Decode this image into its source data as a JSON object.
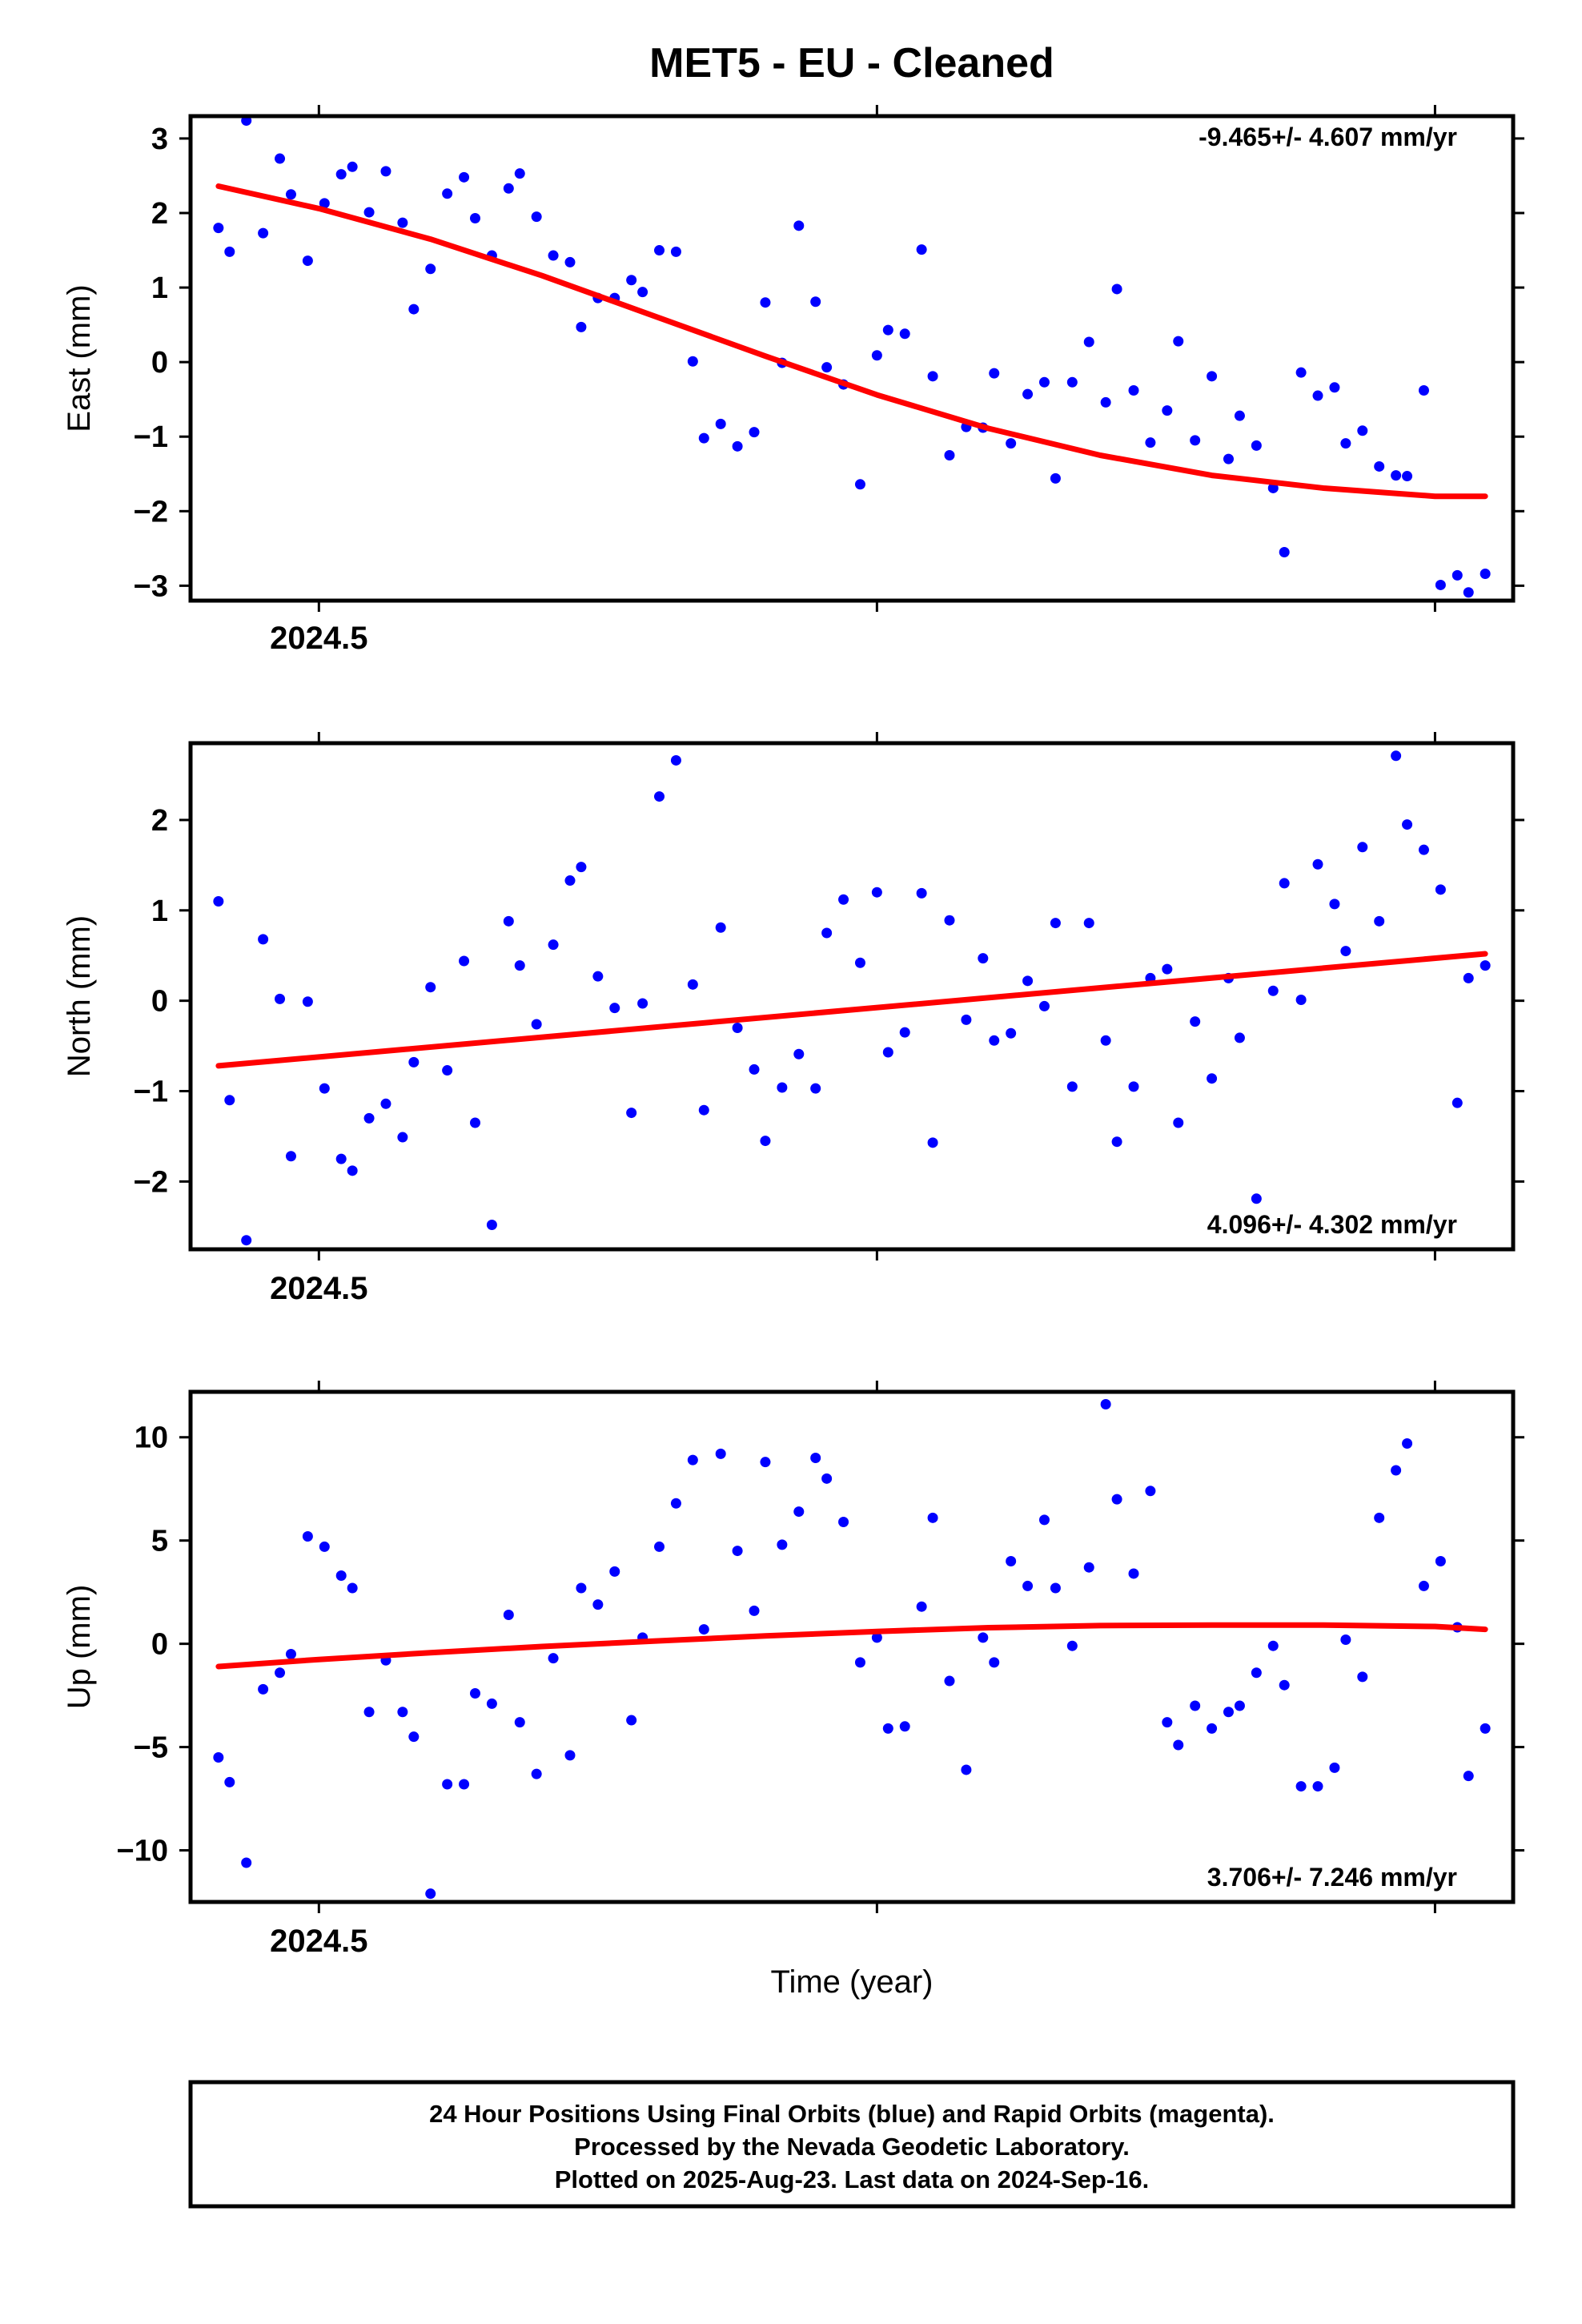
{
  "title": "MET5  - EU - Cleaned",
  "xlabel": "Time (year)",
  "footer": {
    "line1": "24 Hour Positions Using Final Orbits (blue) and Rapid Orbits (magenta).",
    "line2": "Processed by the Nevada Geodetic Laboratory.",
    "line3": "Plotted on 2025-Aug-23. Last data on 2024-Sep-16."
  },
  "colors": {
    "points": "#0000ff",
    "trend": "#ff0000",
    "frame": "#000000"
  },
  "chart_data": [
    {
      "type": "scatter",
      "ylabel": "East (mm)",
      "rate_text": "-9.465+/- 4.607 mm/yr",
      "rate_position": "top-right",
      "xlim": [
        2024.477,
        2024.714
      ],
      "ylim": [
        -3.2,
        3.3
      ],
      "yticks": [
        -3,
        -2,
        -1,
        0,
        1,
        2,
        3
      ],
      "xtick_labels": [
        "2024.5"
      ],
      "xticks_minor": [
        2024.5,
        2024.6,
        2024.7
      ],
      "series": [
        {
          "x": [
            2024.482,
            2024.484,
            2024.487,
            2024.49,
            2024.493,
            2024.495,
            2024.498,
            2024.501,
            2024.504,
            2024.506,
            2024.509,
            2024.512,
            2024.515,
            2024.517,
            2024.52,
            2024.523,
            2024.526,
            2024.528,
            2024.531,
            2024.534,
            2024.536,
            2024.539,
            2024.542,
            2024.545,
            2024.547,
            2024.55,
            2024.553,
            2024.556,
            2024.558,
            2024.561,
            2024.564,
            2024.567,
            2024.569,
            2024.572,
            2024.575,
            2024.578,
            2024.58,
            2024.583,
            2024.586,
            2024.589,
            2024.591,
            2024.594,
            2024.597,
            2024.6,
            2024.602,
            2024.605,
            2024.608,
            2024.61,
            2024.613,
            2024.616,
            2024.619,
            2024.621,
            2024.624,
            2024.627,
            2024.63,
            2024.632,
            2024.635,
            2024.638,
            2024.641,
            2024.643,
            2024.646,
            2024.649,
            2024.652,
            2024.654,
            2024.657,
            2024.66,
            2024.663,
            2024.665,
            2024.668,
            2024.671,
            2024.673,
            2024.676,
            2024.679,
            2024.682,
            2024.684,
            2024.687,
            2024.69,
            2024.693,
            2024.695,
            2024.698,
            2024.701,
            2024.704,
            2024.706,
            2024.709
          ],
          "y": [
            1.8,
            1.48,
            3.24,
            1.73,
            2.73,
            2.25,
            1.36,
            2.13,
            2.52,
            2.62,
            2.01,
            2.56,
            1.87,
            0.71,
            1.25,
            2.26,
            2.48,
            1.93,
            1.43,
            2.33,
            2.53,
            1.95,
            1.43,
            1.34,
            0.47,
            0.86,
            0.86,
            1.1,
            0.94,
            1.5,
            1.48,
            0.01,
            -1.02,
            -0.83,
            -1.13,
            -0.94,
            0.8,
            -0.01,
            1.83,
            0.81,
            -0.07,
            -0.3,
            -1.64,
            0.09,
            0.43,
            0.38,
            1.51,
            -0.19,
            -1.25,
            -0.87,
            -0.88,
            -0.15,
            -1.09,
            -0.43,
            -0.27,
            -1.56,
            -0.27,
            0.27,
            -0.54,
            0.98,
            -0.38,
            -1.08,
            -0.65,
            0.28,
            -1.05,
            -0.19,
            -1.3,
            -0.72,
            -1.12,
            -1.69,
            -2.55,
            -0.14,
            -0.45,
            -0.34,
            -1.09,
            -0.92,
            -1.4,
            -1.52,
            -1.53,
            -0.38,
            -2.99,
            -2.86,
            -3.09,
            -2.84
          ]
        }
      ],
      "trend": {
        "x": [
          2024.482,
          2024.5,
          2024.52,
          2024.54,
          2024.56,
          2024.58,
          2024.6,
          2024.62,
          2024.64,
          2024.66,
          2024.68,
          2024.7,
          2024.709
        ],
        "y": [
          2.36,
          2.06,
          1.65,
          1.16,
          0.62,
          0.08,
          -0.44,
          -0.89,
          -1.25,
          -1.52,
          -1.69,
          -1.8,
          -1.8
        ]
      }
    },
    {
      "type": "scatter",
      "ylabel": "North (mm)",
      "rate_text": "4.096+/- 4.302 mm/yr",
      "rate_position": "bottom-right",
      "xlim": [
        2024.477,
        2024.714
      ],
      "ylim": [
        -2.75,
        2.85
      ],
      "yticks": [
        -2,
        -1,
        0,
        1,
        2
      ],
      "xtick_labels": [
        "2024.5"
      ],
      "xticks_minor": [
        2024.5,
        2024.6,
        2024.7
      ],
      "series": [
        {
          "x": [
            2024.482,
            2024.484,
            2024.487,
            2024.49,
            2024.493,
            2024.495,
            2024.498,
            2024.501,
            2024.504,
            2024.506,
            2024.509,
            2024.512,
            2024.515,
            2024.517,
            2024.52,
            2024.523,
            2024.526,
            2024.528,
            2024.531,
            2024.534,
            2024.536,
            2024.539,
            2024.542,
            2024.545,
            2024.547,
            2024.55,
            2024.553,
            2024.556,
            2024.558,
            2024.561,
            2024.564,
            2024.567,
            2024.569,
            2024.572,
            2024.575,
            2024.578,
            2024.58,
            2024.583,
            2024.586,
            2024.589,
            2024.591,
            2024.594,
            2024.597,
            2024.6,
            2024.602,
            2024.605,
            2024.608,
            2024.61,
            2024.613,
            2024.616,
            2024.619,
            2024.621,
            2024.624,
            2024.627,
            2024.63,
            2024.632,
            2024.635,
            2024.638,
            2024.641,
            2024.643,
            2024.646,
            2024.649,
            2024.652,
            2024.654,
            2024.657,
            2024.66,
            2024.663,
            2024.665,
            2024.668,
            2024.671,
            2024.673,
            2024.676,
            2024.679,
            2024.682,
            2024.684,
            2024.687,
            2024.69,
            2024.693,
            2024.695,
            2024.698,
            2024.701,
            2024.704,
            2024.706,
            2024.709
          ],
          "y": [
            1.1,
            -1.1,
            -2.65,
            0.68,
            0.02,
            -1.72,
            -0.01,
            -0.97,
            -1.75,
            -1.88,
            -1.3,
            -1.14,
            -1.51,
            -0.68,
            0.15,
            -0.77,
            0.44,
            -1.35,
            -2.48,
            0.88,
            0.39,
            -0.26,
            0.62,
            1.33,
            1.48,
            0.27,
            -0.08,
            -1.24,
            -0.03,
            2.26,
            2.66,
            0.18,
            -1.21,
            0.81,
            -0.3,
            -0.76,
            -1.55,
            -0.96,
            -0.59,
            -0.97,
            0.75,
            1.12,
            0.42,
            1.2,
            -0.57,
            -0.35,
            1.19,
            -1.57,
            0.89,
            -0.21,
            0.47,
            -0.44,
            -0.36,
            0.22,
            -0.06,
            0.86,
            -0.95,
            0.86,
            -0.44,
            -1.56,
            -0.95,
            0.25,
            0.35,
            -1.35,
            -0.23,
            -0.86,
            0.25,
            -0.41,
            -2.19,
            0.11,
            1.3,
            0.01,
            1.51,
            1.07,
            0.55,
            1.7,
            0.88,
            2.71,
            1.95,
            1.67,
            1.23,
            -1.13,
            0.25,
            0.39
          ]
        }
      ],
      "trend": {
        "x": [
          2024.482,
          2024.709
        ],
        "y": [
          -0.72,
          0.52
        ]
      }
    },
    {
      "type": "scatter",
      "ylabel": "Up (mm)",
      "rate_text": "3.706+/- 7.246 mm/yr",
      "rate_position": "bottom-right",
      "xlim": [
        2024.477,
        2024.714
      ],
      "ylim": [
        -12.5,
        12.2
      ],
      "yticks": [
        -10,
        -5,
        0,
        5,
        10
      ],
      "xtick_labels": [
        "2024.5"
      ],
      "xticks_minor": [
        2024.5,
        2024.6,
        2024.7
      ],
      "series": [
        {
          "x": [
            2024.482,
            2024.484,
            2024.487,
            2024.49,
            2024.493,
            2024.495,
            2024.498,
            2024.501,
            2024.504,
            2024.506,
            2024.509,
            2024.512,
            2024.515,
            2024.517,
            2024.52,
            2024.523,
            2024.526,
            2024.528,
            2024.531,
            2024.534,
            2024.536,
            2024.539,
            2024.542,
            2024.545,
            2024.547,
            2024.55,
            2024.553,
            2024.556,
            2024.558,
            2024.561,
            2024.564,
            2024.567,
            2024.569,
            2024.572,
            2024.575,
            2024.578,
            2024.58,
            2024.583,
            2024.586,
            2024.589,
            2024.591,
            2024.594,
            2024.597,
            2024.6,
            2024.602,
            2024.605,
            2024.608,
            2024.61,
            2024.613,
            2024.616,
            2024.619,
            2024.621,
            2024.624,
            2024.627,
            2024.63,
            2024.632,
            2024.635,
            2024.638,
            2024.641,
            2024.643,
            2024.646,
            2024.649,
            2024.652,
            2024.654,
            2024.657,
            2024.66,
            2024.663,
            2024.665,
            2024.668,
            2024.671,
            2024.673,
            2024.676,
            2024.679,
            2024.682,
            2024.684,
            2024.687,
            2024.69,
            2024.693,
            2024.695,
            2024.698,
            2024.701,
            2024.704,
            2024.706,
            2024.709
          ],
          "y": [
            -5.5,
            -6.7,
            -10.6,
            -2.2,
            -1.4,
            -0.5,
            5.2,
            4.7,
            3.3,
            2.7,
            -3.3,
            -0.8,
            -3.3,
            -4.5,
            -12.1,
            -6.8,
            -6.8,
            -2.4,
            -2.9,
            1.4,
            -3.8,
            -6.3,
            -0.7,
            -5.4,
            2.7,
            1.9,
            3.5,
            -3.7,
            0.3,
            4.7,
            6.8,
            8.9,
            0.7,
            9.2,
            4.5,
            1.6,
            8.8,
            4.8,
            6.4,
            9.0,
            8.0,
            5.9,
            -0.9,
            0.3,
            -4.1,
            -4.0,
            1.8,
            6.1,
            -1.8,
            -6.1,
            0.3,
            -0.9,
            4.0,
            2.8,
            6.0,
            2.7,
            -0.1,
            3.7,
            11.6,
            7.0,
            3.4,
            7.4,
            -3.8,
            -4.9,
            -3.0,
            -4.1,
            -3.3,
            -3.0,
            -1.4,
            -0.1,
            -2.0,
            -6.9,
            -6.9,
            -6.0,
            0.2,
            -1.6,
            6.1,
            8.4,
            9.7,
            2.8,
            4.0,
            0.8,
            -6.4,
            -4.1
          ]
        }
      ],
      "trend": {
        "x": [
          2024.482,
          2024.5,
          2024.52,
          2024.54,
          2024.56,
          2024.58,
          2024.6,
          2024.62,
          2024.64,
          2024.66,
          2024.68,
          2024.7,
          2024.709
        ],
        "y": [
          -1.1,
          -0.76,
          -0.43,
          -0.13,
          0.13,
          0.38,
          0.6,
          0.78,
          0.88,
          0.91,
          0.91,
          0.84,
          0.7
        ]
      }
    }
  ]
}
